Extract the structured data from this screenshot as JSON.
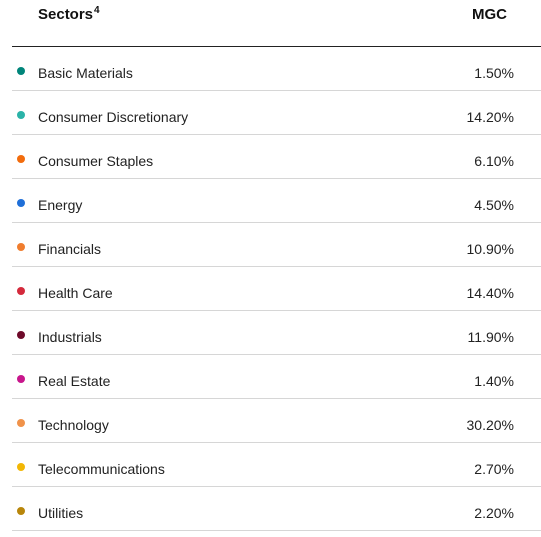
{
  "table": {
    "header": {
      "sector_label": "Sectors",
      "footnote": "4",
      "fund_label": "MGC"
    },
    "rows": [
      {
        "label": "Basic Materials",
        "value": "1.50%",
        "color": "#00857a"
      },
      {
        "label": "Consumer Discretionary",
        "value": "14.20%",
        "color": "#2bb3a8"
      },
      {
        "label": "Consumer Staples",
        "value": "6.10%",
        "color": "#f26c0d"
      },
      {
        "label": "Energy",
        "value": "4.50%",
        "color": "#1f6fd8"
      },
      {
        "label": "Financials",
        "value": "10.90%",
        "color": "#f07d2e"
      },
      {
        "label": "Health Care",
        "value": "14.40%",
        "color": "#d42a3c"
      },
      {
        "label": "Industrials",
        "value": "11.90%",
        "color": "#6e0a2a"
      },
      {
        "label": "Real Estate",
        "value": "1.40%",
        "color": "#c8168c"
      },
      {
        "label": "Technology",
        "value": "30.20%",
        "color": "#f0924a"
      },
      {
        "label": "Telecommunications",
        "value": "2.70%",
        "color": "#f2b705"
      },
      {
        "label": "Utilities",
        "value": "2.20%",
        "color": "#b8860b"
      }
    ]
  }
}
